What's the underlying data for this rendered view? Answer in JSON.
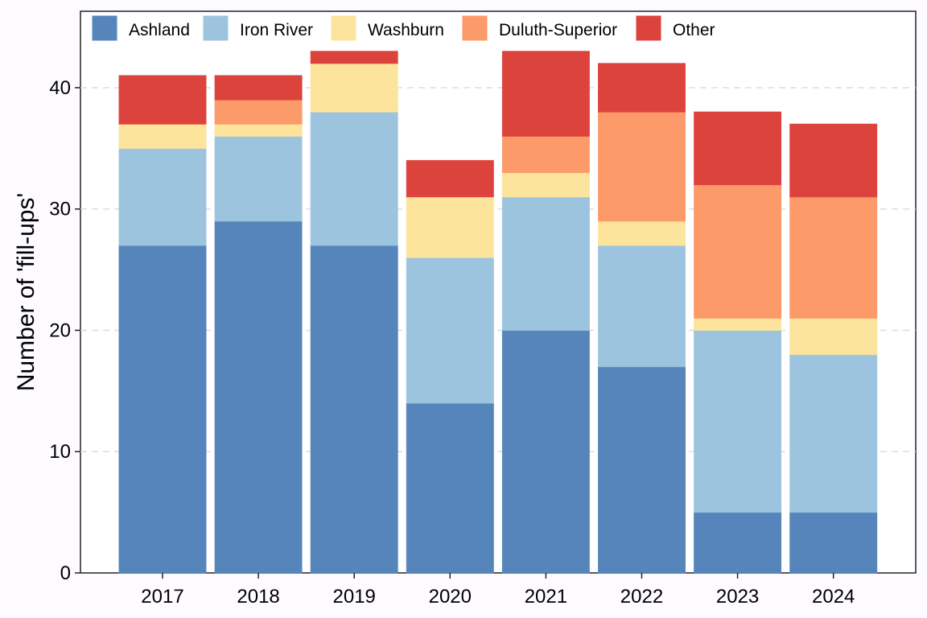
{
  "chart_data": {
    "type": "bar",
    "stacked": true,
    "categories": [
      "2017",
      "2018",
      "2019",
      "2020",
      "2021",
      "2022",
      "2023",
      "2024"
    ],
    "series": [
      {
        "name": "Ashland",
        "color": "#5585bb",
        "values": [
          27,
          29,
          27,
          14,
          20,
          17,
          5,
          5
        ]
      },
      {
        "name": "Iron River",
        "color": "#9dc4de",
        "values": [
          8,
          7,
          11,
          12,
          11,
          10,
          15,
          13
        ]
      },
      {
        "name": "Washburn",
        "color": "#fde49c",
        "values": [
          2,
          1,
          4,
          5,
          2,
          2,
          1,
          3
        ]
      },
      {
        "name": "Duluth-Superior",
        "color": "#fc9a6a",
        "values": [
          0,
          2,
          0,
          0,
          3,
          9,
          11,
          10
        ]
      },
      {
        "name": "Other",
        "color": "#dd433d",
        "values": [
          4,
          2,
          1,
          3,
          7,
          4,
          6,
          6
        ]
      }
    ],
    "title": "",
    "xlabel": "",
    "ylabel": "Number of 'fill-ups'",
    "ylim": [
      0,
      46.3
    ],
    "yticks": [
      0,
      10,
      20,
      30,
      40
    ],
    "grid": "horizontal dashed",
    "legend_position": "top-left"
  }
}
